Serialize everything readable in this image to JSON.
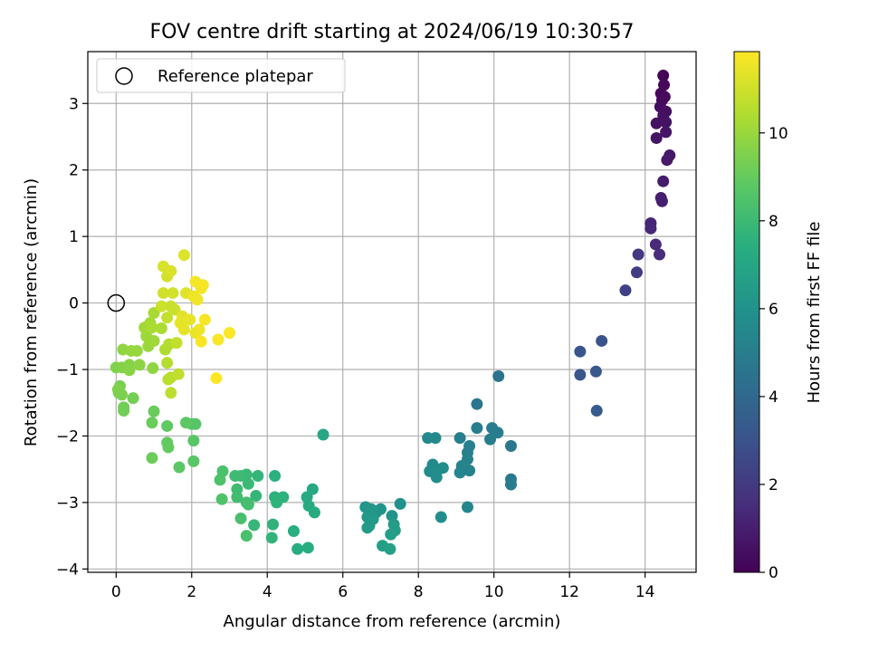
{
  "chart_data": {
    "type": "scatter",
    "title": "FOV centre drift starting at 2024/06/19 10:30:57",
    "xlabel": "Angular distance from reference (arcmin)",
    "ylabel": "Rotation from reference (arcmin)",
    "xlim": [
      -0.75,
      15.35
    ],
    "ylim": [
      -4.05,
      3.78
    ],
    "xticks": [
      0,
      2,
      4,
      6,
      8,
      10,
      12,
      14
    ],
    "yticks": [
      -4,
      -3,
      -2,
      -1,
      0,
      1,
      2,
      3
    ],
    "grid": true,
    "legend": {
      "placement": "top-left",
      "entries": [
        "Reference platepar"
      ]
    },
    "reference_point": {
      "x": 0,
      "y": 0,
      "label": "Reference platepar"
    },
    "colorbar": {
      "label": "Hours from first FF file",
      "colormap": "viridis",
      "range": [
        0,
        11.85
      ],
      "ticks": [
        0,
        2,
        4,
        6,
        8,
        10
      ]
    },
    "points": [
      {
        "x": 14.48,
        "y": 3.42,
        "h": 0.1
      },
      {
        "x": 14.42,
        "y": 3.15,
        "h": 0.2
      },
      {
        "x": 14.5,
        "y": 3.28,
        "h": 0.25
      },
      {
        "x": 14.45,
        "y": 3.05,
        "h": 0.3
      },
      {
        "x": 14.52,
        "y": 3.1,
        "h": 0.35
      },
      {
        "x": 14.4,
        "y": 2.95,
        "h": 0.4
      },
      {
        "x": 14.55,
        "y": 2.88,
        "h": 0.45
      },
      {
        "x": 14.48,
        "y": 2.82,
        "h": 0.5
      },
      {
        "x": 14.3,
        "y": 2.7,
        "h": 0.55
      },
      {
        "x": 14.55,
        "y": 2.72,
        "h": 0.6
      },
      {
        "x": 14.3,
        "y": 2.48,
        "h": 0.65
      },
      {
        "x": 14.55,
        "y": 2.57,
        "h": 0.7
      },
      {
        "x": 14.65,
        "y": 2.22,
        "h": 0.75
      },
      {
        "x": 14.58,
        "y": 2.15,
        "h": 0.8
      },
      {
        "x": 14.48,
        "y": 1.83,
        "h": 0.9
      },
      {
        "x": 14.42,
        "y": 1.58,
        "h": 1.0
      },
      {
        "x": 14.45,
        "y": 1.53,
        "h": 1.05
      },
      {
        "x": 14.15,
        "y": 1.2,
        "h": 1.2
      },
      {
        "x": 14.15,
        "y": 1.12,
        "h": 1.3
      },
      {
        "x": 14.28,
        "y": 0.88,
        "h": 1.4
      },
      {
        "x": 14.38,
        "y": 0.73,
        "h": 1.5
      },
      {
        "x": 13.82,
        "y": 0.73,
        "h": 2.0
      },
      {
        "x": 13.78,
        "y": 0.46,
        "h": 2.1
      },
      {
        "x": 13.48,
        "y": 0.19,
        "h": 2.3
      },
      {
        "x": 12.85,
        "y": -0.57,
        "h": 3.0
      },
      {
        "x": 12.28,
        "y": -0.73,
        "h": 3.1
      },
      {
        "x": 12.28,
        "y": -1.08,
        "h": 3.2
      },
      {
        "x": 12.7,
        "y": -1.03,
        "h": 3.3
      },
      {
        "x": 12.72,
        "y": -1.62,
        "h": 3.4
      },
      {
        "x": 10.12,
        "y": -1.1,
        "h": 4.5
      },
      {
        "x": 9.55,
        "y": -1.52,
        "h": 4.6
      },
      {
        "x": 10.45,
        "y": -2.15,
        "h": 4.7
      },
      {
        "x": 10.45,
        "y": -2.65,
        "h": 4.8
      },
      {
        "x": 10.45,
        "y": -2.73,
        "h": 4.85
      },
      {
        "x": 9.95,
        "y": -1.88,
        "h": 4.9
      },
      {
        "x": 10.1,
        "y": -1.95,
        "h": 4.95
      },
      {
        "x": 9.55,
        "y": -1.88,
        "h": 5.0
      },
      {
        "x": 9.9,
        "y": -2.05,
        "h": 5.0
      },
      {
        "x": 9.1,
        "y": -2.03,
        "h": 5.05
      },
      {
        "x": 9.35,
        "y": -2.15,
        "h": 5.1
      },
      {
        "x": 9.3,
        "y": -2.25,
        "h": 5.15
      },
      {
        "x": 9.3,
        "y": -2.35,
        "h": 5.2
      },
      {
        "x": 9.35,
        "y": -2.52,
        "h": 5.25
      },
      {
        "x": 9.15,
        "y": -2.45,
        "h": 5.3
      },
      {
        "x": 9.1,
        "y": -2.55,
        "h": 5.35
      },
      {
        "x": 9.3,
        "y": -3.07,
        "h": 5.4
      },
      {
        "x": 8.25,
        "y": -2.03,
        "h": 5.5
      },
      {
        "x": 8.45,
        "y": -2.03,
        "h": 5.55
      },
      {
        "x": 8.38,
        "y": -2.43,
        "h": 5.6
      },
      {
        "x": 8.3,
        "y": -2.53,
        "h": 5.65
      },
      {
        "x": 8.5,
        "y": -2.52,
        "h": 5.7
      },
      {
        "x": 8.65,
        "y": -2.48,
        "h": 5.72
      },
      {
        "x": 8.48,
        "y": -2.62,
        "h": 5.75
      },
      {
        "x": 8.6,
        "y": -3.22,
        "h": 5.8
      },
      {
        "x": 7.52,
        "y": -3.02,
        "h": 6.0
      },
      {
        "x": 7.3,
        "y": -3.2,
        "h": 6.05
      },
      {
        "x": 7.0,
        "y": -3.1,
        "h": 6.1
      },
      {
        "x": 6.88,
        "y": -3.15,
        "h": 6.15
      },
      {
        "x": 6.6,
        "y": -3.07,
        "h": 6.2
      },
      {
        "x": 6.75,
        "y": -3.1,
        "h": 6.25
      },
      {
        "x": 6.65,
        "y": -3.22,
        "h": 6.3
      },
      {
        "x": 6.8,
        "y": -3.25,
        "h": 6.35
      },
      {
        "x": 6.7,
        "y": -3.35,
        "h": 6.4
      },
      {
        "x": 6.65,
        "y": -3.38,
        "h": 6.45
      },
      {
        "x": 7.35,
        "y": -3.33,
        "h": 6.5
      },
      {
        "x": 7.38,
        "y": -3.42,
        "h": 6.55
      },
      {
        "x": 7.27,
        "y": -3.48,
        "h": 6.6
      },
      {
        "x": 7.05,
        "y": -3.65,
        "h": 6.65
      },
      {
        "x": 7.25,
        "y": -3.7,
        "h": 6.7
      },
      {
        "x": 5.48,
        "y": -1.98,
        "h": 7.0
      },
      {
        "x": 5.2,
        "y": -2.8,
        "h": 7.1
      },
      {
        "x": 5.05,
        "y": -2.92,
        "h": 7.15
      },
      {
        "x": 5.1,
        "y": -3.05,
        "h": 7.2
      },
      {
        "x": 5.25,
        "y": -3.15,
        "h": 7.25
      },
      {
        "x": 4.8,
        "y": -3.7,
        "h": 7.3
      },
      {
        "x": 5.08,
        "y": -3.68,
        "h": 7.35
      },
      {
        "x": 4.7,
        "y": -3.43,
        "h": 7.4
      },
      {
        "x": 4.2,
        "y": -2.6,
        "h": 7.45
      },
      {
        "x": 4.2,
        "y": -2.92,
        "h": 7.5
      },
      {
        "x": 4.42,
        "y": -2.92,
        "h": 7.55
      },
      {
        "x": 4.25,
        "y": -3.0,
        "h": 7.6
      },
      {
        "x": 4.15,
        "y": -3.33,
        "h": 7.65
      },
      {
        "x": 4.12,
        "y": -3.53,
        "h": 7.7
      },
      {
        "x": 3.75,
        "y": -2.6,
        "h": 7.75
      },
      {
        "x": 3.7,
        "y": -2.9,
        "h": 7.8
      },
      {
        "x": 3.65,
        "y": -3.34,
        "h": 7.85
      },
      {
        "x": 3.45,
        "y": -2.58,
        "h": 7.9
      },
      {
        "x": 3.5,
        "y": -2.72,
        "h": 7.95
      },
      {
        "x": 3.3,
        "y": -2.6,
        "h": 8.0
      },
      {
        "x": 3.15,
        "y": -2.6,
        "h": 8.05
      },
      {
        "x": 3.2,
        "y": -2.8,
        "h": 8.1
      },
      {
        "x": 3.2,
        "y": -2.92,
        "h": 8.15
      },
      {
        "x": 3.45,
        "y": -3.0,
        "h": 8.2
      },
      {
        "x": 3.5,
        "y": -3.03,
        "h": 8.25
      },
      {
        "x": 3.3,
        "y": -3.24,
        "h": 8.3
      },
      {
        "x": 3.45,
        "y": -3.5,
        "h": 8.35
      },
      {
        "x": 2.82,
        "y": -2.53,
        "h": 8.4
      },
      {
        "x": 2.75,
        "y": -2.66,
        "h": 8.45
      },
      {
        "x": 2.8,
        "y": -2.95,
        "h": 8.5
      },
      {
        "x": 2.0,
        "y": -1.82,
        "h": 8.6
      },
      {
        "x": 2.1,
        "y": -1.82,
        "h": 8.65
      },
      {
        "x": 2.05,
        "y": -2.07,
        "h": 8.7
      },
      {
        "x": 2.05,
        "y": -2.38,
        "h": 8.75
      },
      {
        "x": 1.67,
        "y": -2.47,
        "h": 8.8
      },
      {
        "x": 1.85,
        "y": -1.8,
        "h": 8.85
      },
      {
        "x": 1.35,
        "y": -1.85,
        "h": 8.9
      },
      {
        "x": 1.35,
        "y": -2.1,
        "h": 8.95
      },
      {
        "x": 1.38,
        "y": -2.17,
        "h": 9.0
      },
      {
        "x": 1.0,
        "y": -1.63,
        "h": 9.05
      },
      {
        "x": 0.95,
        "y": -1.8,
        "h": 9.1
      },
      {
        "x": 0.95,
        "y": -2.33,
        "h": 9.15
      },
      {
        "x": 0.2,
        "y": -1.57,
        "h": 9.2
      },
      {
        "x": 0.2,
        "y": -1.62,
        "h": 9.25
      },
      {
        "x": 0.45,
        "y": -1.43,
        "h": 9.3
      },
      {
        "x": 0.1,
        "y": -1.25,
        "h": 9.35
      },
      {
        "x": 0.07,
        "y": -1.35,
        "h": 9.4
      },
      {
        "x": 0.15,
        "y": -1.38,
        "h": 9.45
      },
      {
        "x": 0.05,
        "y": -1.3,
        "h": 9.5
      },
      {
        "x": 0.0,
        "y": -0.97,
        "h": 9.55
      },
      {
        "x": 0.15,
        "y": -0.97,
        "h": 9.6
      },
      {
        "x": 0.35,
        "y": -0.93,
        "h": 9.65
      },
      {
        "x": 0.35,
        "y": -1.01,
        "h": 9.7
      },
      {
        "x": 0.62,
        "y": -0.93,
        "h": 9.75
      },
      {
        "x": 0.97,
        "y": -0.98,
        "h": 9.8
      },
      {
        "x": 0.18,
        "y": -0.7,
        "h": 9.85
      },
      {
        "x": 0.4,
        "y": -0.72,
        "h": 9.9
      },
      {
        "x": 0.55,
        "y": -0.72,
        "h": 9.95
      },
      {
        "x": 0.85,
        "y": -0.65,
        "h": 10.0
      },
      {
        "x": 0.8,
        "y": -0.5,
        "h": 10.05
      },
      {
        "x": 1.0,
        "y": -0.57,
        "h": 10.1
      },
      {
        "x": 0.75,
        "y": -0.37,
        "h": 10.15
      },
      {
        "x": 0.9,
        "y": -0.3,
        "h": 10.2
      },
      {
        "x": 1.0,
        "y": -0.15,
        "h": 10.25
      },
      {
        "x": 0.95,
        "y": -0.37,
        "h": 10.3
      },
      {
        "x": 1.2,
        "y": -0.38,
        "h": 10.35
      },
      {
        "x": 1.3,
        "y": -0.7,
        "h": 10.4
      },
      {
        "x": 1.4,
        "y": -0.62,
        "h": 10.45
      },
      {
        "x": 1.35,
        "y": -0.9,
        "h": 10.5
      },
      {
        "x": 1.45,
        "y": -1.12,
        "h": 10.55
      },
      {
        "x": 1.38,
        "y": -1.15,
        "h": 10.6
      },
      {
        "x": 1.45,
        "y": -1.35,
        "h": 10.65
      },
      {
        "x": 1.65,
        "y": -1.07,
        "h": 10.7
      },
      {
        "x": 1.6,
        "y": -0.6,
        "h": 10.75
      },
      {
        "x": 1.35,
        "y": -0.22,
        "h": 10.8
      },
      {
        "x": 1.45,
        "y": -0.05,
        "h": 10.85
      },
      {
        "x": 1.55,
        "y": -0.1,
        "h": 10.9
      },
      {
        "x": 1.2,
        "y": -0.05,
        "h": 10.95
      },
      {
        "x": 1.25,
        "y": 0.15,
        "h": 11.0
      },
      {
        "x": 1.5,
        "y": 0.15,
        "h": 11.05
      },
      {
        "x": 1.35,
        "y": 0.4,
        "h": 11.1
      },
      {
        "x": 1.25,
        "y": 0.55,
        "h": 11.15
      },
      {
        "x": 1.45,
        "y": 0.48,
        "h": 11.2
      },
      {
        "x": 1.8,
        "y": 0.72,
        "h": 11.25
      },
      {
        "x": 1.85,
        "y": 0.15,
        "h": 11.3
      },
      {
        "x": 1.75,
        "y": -0.2,
        "h": 11.35
      },
      {
        "x": 1.7,
        "y": -0.3,
        "h": 11.4
      },
      {
        "x": 1.8,
        "y": -0.4,
        "h": 11.42
      },
      {
        "x": 1.95,
        "y": -0.25,
        "h": 11.45
      },
      {
        "x": 2.1,
        "y": -0.45,
        "h": 11.5
      },
      {
        "x": 2.2,
        "y": -0.4,
        "h": 11.55
      },
      {
        "x": 2.05,
        "y": 0.1,
        "h": 11.6
      },
      {
        "x": 2.15,
        "y": 0.05,
        "h": 11.62
      },
      {
        "x": 2.1,
        "y": 0.32,
        "h": 11.65
      },
      {
        "x": 2.25,
        "y": 0.22,
        "h": 11.68
      },
      {
        "x": 2.3,
        "y": 0.27,
        "h": 11.7
      },
      {
        "x": 2.35,
        "y": -0.25,
        "h": 11.72
      },
      {
        "x": 2.25,
        "y": -0.58,
        "h": 11.75
      },
      {
        "x": 2.7,
        "y": -0.55,
        "h": 11.78
      },
      {
        "x": 3.0,
        "y": -0.45,
        "h": 11.8
      },
      {
        "x": 2.65,
        "y": -1.13,
        "h": 11.85
      }
    ]
  }
}
